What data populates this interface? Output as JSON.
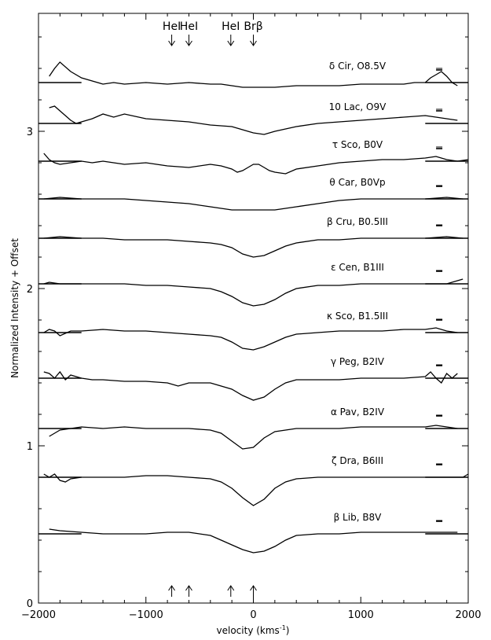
{
  "chart_data": {
    "type": "line",
    "xlabel": "velocity (kms",
    "xlabel_sup": "-1",
    "xlabel_close": ")",
    "ylabel": "Normalized Intensity + Offset",
    "xlim": [
      -2000,
      2000
    ],
    "ylim": [
      0,
      3.75
    ],
    "x_ticks": [
      -2000,
      -1000,
      0,
      1000,
      2000
    ],
    "x_tick_labels": [
      "−2000",
      "−1000",
      "0",
      "1000",
      "2000"
    ],
    "y_ticks": [
      0,
      1,
      2,
      3
    ],
    "y_tick_labels": [
      "0",
      "1",
      "2",
      "3"
    ],
    "grid": false,
    "line_markers": [
      {
        "label": "HeI",
        "velocity": -760
      },
      {
        "label": "HeI",
        "velocity": -600
      },
      {
        "label": "HeI",
        "velocity": -210
      },
      {
        "label": "Brβ",
        "velocity": 0
      }
    ],
    "continuum_segments": [
      [
        -2000,
        -1600
      ],
      [
        1600,
        2000
      ]
    ],
    "series": [
      {
        "name": "δ Cir,  O8.5V",
        "offset": 3.31,
        "error_bar": 0.01,
        "x": [
          -1900,
          -1850,
          -1800,
          -1700,
          -1600,
          -1500,
          -1400,
          -1300,
          -1200,
          -1000,
          -800,
          -600,
          -400,
          -300,
          -200,
          -100,
          0,
          100,
          200,
          400,
          600,
          800,
          1000,
          1200,
          1400,
          1500,
          1600,
          1650,
          1700,
          1750,
          1800,
          1850,
          1900
        ],
        "y": [
          3.35,
          3.4,
          3.44,
          3.38,
          3.34,
          3.32,
          3.3,
          3.31,
          3.3,
          3.31,
          3.3,
          3.31,
          3.3,
          3.3,
          3.29,
          3.28,
          3.28,
          3.28,
          3.28,
          3.29,
          3.29,
          3.29,
          3.3,
          3.3,
          3.3,
          3.31,
          3.31,
          3.34,
          3.36,
          3.38,
          3.35,
          3.31,
          3.29
        ]
      },
      {
        "name": "10 Lac,  O9V",
        "offset": 3.05,
        "error_bar": 0.01,
        "x": [
          -1900,
          -1850,
          -1800,
          -1750,
          -1700,
          -1650,
          -1600,
          -1500,
          -1400,
          -1300,
          -1200,
          -1000,
          -800,
          -600,
          -400,
          -200,
          -100,
          0,
          100,
          200,
          400,
          600,
          800,
          1000,
          1200,
          1400,
          1600,
          1700,
          1800,
          1900
        ],
        "y": [
          3.15,
          3.16,
          3.13,
          3.1,
          3.07,
          3.05,
          3.06,
          3.08,
          3.11,
          3.09,
          3.11,
          3.08,
          3.07,
          3.06,
          3.04,
          3.03,
          3.01,
          2.99,
          2.98,
          3.0,
          3.03,
          3.05,
          3.06,
          3.07,
          3.08,
          3.09,
          3.1,
          3.09,
          3.08,
          3.07
        ]
      },
      {
        "name": "τ Sco,  B0V",
        "offset": 2.81,
        "error_bar": 0.01,
        "x": [
          -1950,
          -1900,
          -1850,
          -1800,
          -1700,
          -1600,
          -1500,
          -1400,
          -1300,
          -1200,
          -1000,
          -800,
          -600,
          -400,
          -300,
          -200,
          -150,
          -100,
          -50,
          0,
          50,
          100,
          150,
          200,
          300,
          400,
          600,
          800,
          1000,
          1200,
          1400,
          1600,
          1700,
          1800,
          1900,
          2000
        ],
        "y": [
          2.86,
          2.82,
          2.8,
          2.79,
          2.8,
          2.81,
          2.8,
          2.81,
          2.8,
          2.79,
          2.8,
          2.78,
          2.77,
          2.79,
          2.78,
          2.76,
          2.74,
          2.75,
          2.77,
          2.79,
          2.79,
          2.77,
          2.75,
          2.74,
          2.73,
          2.76,
          2.78,
          2.8,
          2.81,
          2.82,
          2.82,
          2.83,
          2.84,
          2.82,
          2.81,
          2.82
        ]
      },
      {
        "name": "θ Car,  B0Vp",
        "offset": 2.57,
        "error_bar": 0.005,
        "x": [
          -1950,
          -1800,
          -1600,
          -1400,
          -1200,
          -1000,
          -800,
          -600,
          -400,
          -200,
          0,
          200,
          400,
          600,
          800,
          1000,
          1200,
          1400,
          1600,
          1800,
          1950
        ],
        "y": [
          2.57,
          2.58,
          2.57,
          2.57,
          2.57,
          2.56,
          2.55,
          2.54,
          2.52,
          2.5,
          2.5,
          2.5,
          2.52,
          2.54,
          2.56,
          2.57,
          2.57,
          2.57,
          2.57,
          2.58,
          2.57
        ]
      },
      {
        "name": "β Cru,  B0.5III",
        "offset": 2.32,
        "error_bar": 0.005,
        "x": [
          -1950,
          -1800,
          -1600,
          -1400,
          -1200,
          -1000,
          -800,
          -600,
          -400,
          -300,
          -200,
          -100,
          0,
          100,
          200,
          300,
          400,
          600,
          800,
          1000,
          1200,
          1400,
          1600,
          1800,
          1950
        ],
        "y": [
          2.32,
          2.33,
          2.32,
          2.32,
          2.31,
          2.31,
          2.31,
          2.3,
          2.29,
          2.28,
          2.26,
          2.22,
          2.2,
          2.21,
          2.24,
          2.27,
          2.29,
          2.31,
          2.31,
          2.32,
          2.32,
          2.32,
          2.32,
          2.33,
          2.32
        ]
      },
      {
        "name": "ε Cen,  B1III",
        "offset": 2.03,
        "error_bar": 0.005,
        "x": [
          -1950,
          -1900,
          -1800,
          -1600,
          -1400,
          -1200,
          -1000,
          -800,
          -600,
          -400,
          -300,
          -200,
          -100,
          0,
          100,
          200,
          300,
          400,
          600,
          800,
          1000,
          1200,
          1400,
          1600,
          1800,
          1950
        ],
        "y": [
          2.03,
          2.04,
          2.03,
          2.03,
          2.03,
          2.03,
          2.02,
          2.02,
          2.01,
          2.0,
          1.98,
          1.95,
          1.91,
          1.89,
          1.9,
          1.93,
          1.97,
          2.0,
          2.02,
          2.02,
          2.03,
          2.03,
          2.03,
          2.03,
          2.03,
          2.06
        ]
      },
      {
        "name": "κ Sco,  B1.5III",
        "offset": 1.72,
        "error_bar": 0.005,
        "x": [
          -1950,
          -1900,
          -1850,
          -1800,
          -1700,
          -1600,
          -1400,
          -1200,
          -1000,
          -800,
          -600,
          -400,
          -300,
          -200,
          -100,
          0,
          100,
          200,
          300,
          400,
          600,
          800,
          1000,
          1200,
          1400,
          1600,
          1700,
          1800,
          1900
        ],
        "y": [
          1.72,
          1.74,
          1.73,
          1.7,
          1.73,
          1.73,
          1.74,
          1.73,
          1.73,
          1.72,
          1.71,
          1.7,
          1.69,
          1.66,
          1.62,
          1.61,
          1.63,
          1.66,
          1.69,
          1.71,
          1.72,
          1.73,
          1.73,
          1.73,
          1.74,
          1.74,
          1.75,
          1.73,
          1.72
        ]
      },
      {
        "name": "γ Peg,  B2IV",
        "offset": 1.43,
        "error_bar": 0.005,
        "x": [
          -1950,
          -1900,
          -1850,
          -1800,
          -1750,
          -1700,
          -1600,
          -1500,
          -1400,
          -1200,
          -1000,
          -800,
          -700,
          -600,
          -400,
          -300,
          -200,
          -100,
          0,
          100,
          200,
          300,
          400,
          600,
          800,
          1000,
          1200,
          1400,
          1600,
          1650,
          1700,
          1750,
          1800,
          1850,
          1900
        ],
        "y": [
          1.47,
          1.46,
          1.43,
          1.47,
          1.42,
          1.45,
          1.43,
          1.42,
          1.42,
          1.41,
          1.41,
          1.4,
          1.38,
          1.4,
          1.4,
          1.38,
          1.36,
          1.32,
          1.29,
          1.31,
          1.36,
          1.4,
          1.42,
          1.42,
          1.42,
          1.43,
          1.43,
          1.43,
          1.44,
          1.47,
          1.43,
          1.4,
          1.46,
          1.43,
          1.46
        ]
      },
      {
        "name": "α Pav,  B2IV",
        "offset": 1.11,
        "error_bar": 0.005,
        "x": [
          -1900,
          -1850,
          -1800,
          -1700,
          -1600,
          -1400,
          -1200,
          -1000,
          -800,
          -600,
          -400,
          -300,
          -200,
          -100,
          0,
          100,
          200,
          400,
          600,
          800,
          1000,
          1200,
          1400,
          1600,
          1700,
          1800,
          1900
        ],
        "y": [
          1.06,
          1.08,
          1.1,
          1.11,
          1.12,
          1.11,
          1.12,
          1.11,
          1.11,
          1.11,
          1.1,
          1.08,
          1.03,
          0.98,
          0.99,
          1.05,
          1.09,
          1.11,
          1.11,
          1.11,
          1.12,
          1.12,
          1.12,
          1.12,
          1.13,
          1.12,
          1.11
        ]
      },
      {
        "name": "ζ Dra,  B6III",
        "offset": 0.8,
        "error_bar": 0.005,
        "x": [
          -1950,
          -1900,
          -1850,
          -1800,
          -1750,
          -1700,
          -1600,
          -1400,
          -1200,
          -1000,
          -800,
          -600,
          -400,
          -300,
          -200,
          -100,
          0,
          100,
          200,
          300,
          400,
          600,
          800,
          1000,
          1200,
          1400,
          1600,
          1800,
          1950,
          2000
        ],
        "y": [
          0.82,
          0.8,
          0.82,
          0.78,
          0.77,
          0.79,
          0.8,
          0.8,
          0.8,
          0.81,
          0.81,
          0.8,
          0.79,
          0.77,
          0.73,
          0.67,
          0.62,
          0.66,
          0.73,
          0.77,
          0.79,
          0.8,
          0.8,
          0.8,
          0.8,
          0.8,
          0.8,
          0.8,
          0.8,
          0.82
        ]
      },
      {
        "name": "β Lib,  B8V",
        "offset": 0.44,
        "error_bar": 0.005,
        "x": [
          -1900,
          -1800,
          -1600,
          -1400,
          -1200,
          -1000,
          -800,
          -600,
          -400,
          -300,
          -200,
          -100,
          0,
          100,
          200,
          300,
          400,
          600,
          800,
          1000,
          1200,
          1400,
          1600,
          1800,
          1900
        ],
        "y": [
          0.47,
          0.46,
          0.45,
          0.44,
          0.44,
          0.44,
          0.45,
          0.45,
          0.43,
          0.4,
          0.37,
          0.34,
          0.32,
          0.33,
          0.36,
          0.4,
          0.43,
          0.44,
          0.44,
          0.45,
          0.45,
          0.45,
          0.45,
          0.45,
          0.45
        ]
      }
    ]
  }
}
